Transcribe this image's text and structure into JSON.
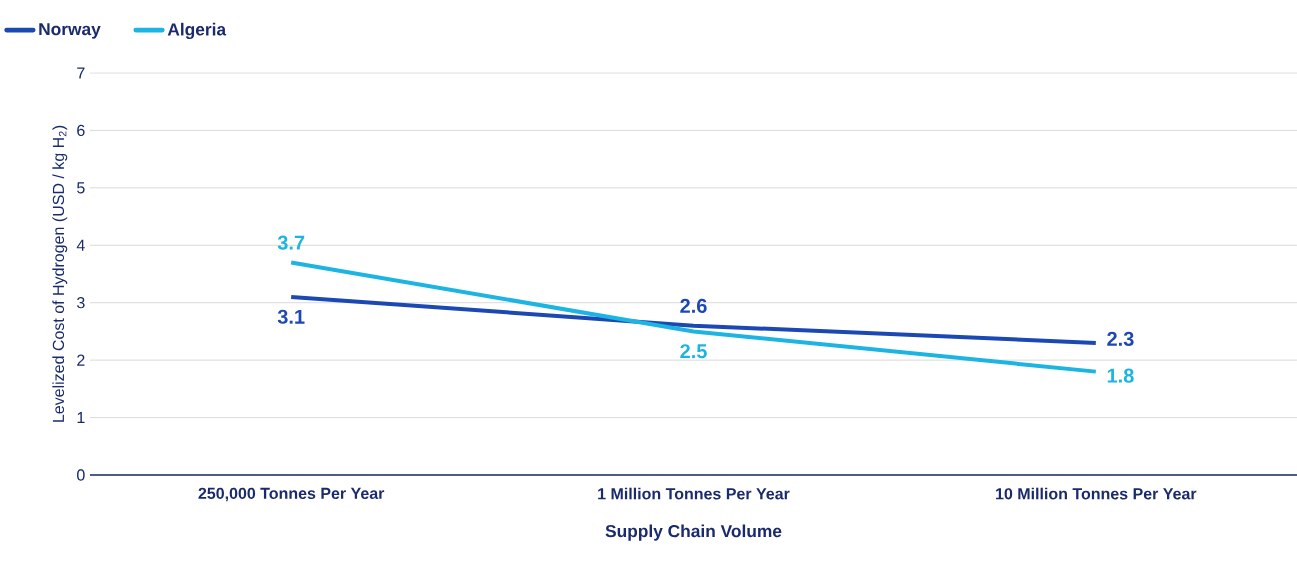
{
  "chart_data": {
    "type": "line",
    "xlabel": "Supply Chain Volume",
    "ylabel": "Levelized Cost of Hydrogen (USD / kg H$_{2}$)",
    "categories": [
      "250,000 Tonnes Per Year",
      "1 Million Tonnes Per Year",
      "10 Million Tonnes Per Year"
    ],
    "series": [
      {
        "name": "Norway",
        "color": "#1c48b4",
        "values": [
          3.1,
          2.6,
          2.3
        ]
      },
      {
        "name": "Algeria",
        "color": "#1cb4e2",
        "values": [
          3.7,
          2.5,
          1.8
        ]
      }
    ],
    "ylim": [
      0,
      7
    ],
    "yticks": [
      0,
      1,
      2,
      3,
      4,
      5,
      6,
      7
    ],
    "grid": "y",
    "legend": "top left",
    "marker": "none",
    "line_style": "solid",
    "data_labels": true
  }
}
